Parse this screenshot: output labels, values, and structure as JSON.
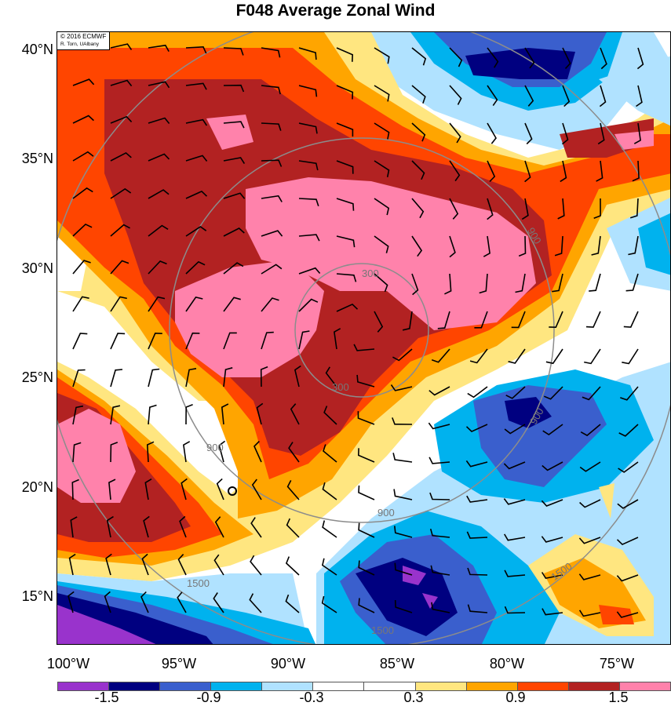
{
  "title": "F048 Average Zonal Wind",
  "credit": {
    "line1": "© 2016 ECMWF",
    "line2": "R. Torn, UAlbany"
  },
  "lat_labels": [
    "40°N",
    "35°N",
    "30°N",
    "25°N",
    "20°N",
    "15°N"
  ],
  "lon_labels": [
    "100°W",
    "95°W",
    "90°W",
    "85°W",
    "80°W",
    "75°W"
  ],
  "contour_labels": [
    "300",
    "300",
    "900",
    "900",
    "900",
    "900",
    "1500",
    "1500",
    "1500"
  ],
  "colorbar": {
    "colors": [
      "#9933cc",
      "#000080",
      "#3a5fcd",
      "#00b2ee",
      "#b0e2ff",
      "#ffffff",
      "#ffffff",
      "#ffe680",
      "#ffa500",
      "#ff4500",
      "#b22222",
      "#ff82ab"
    ],
    "labels": [
      "-1.5",
      "-0.9",
      "-0.3",
      "0.3",
      "0.9",
      "1.5"
    ]
  }
}
